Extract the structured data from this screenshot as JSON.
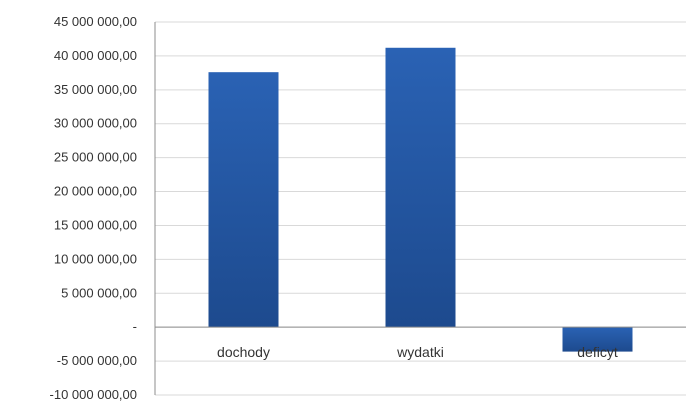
{
  "chart_data": {
    "type": "bar",
    "categories": [
      "dochody",
      "wydatki",
      "deficyt"
    ],
    "values": [
      37600000,
      41200000,
      -3600000
    ],
    "ylim": [
      -10000000,
      45000000
    ],
    "y_ticks": [
      {
        "value": 45000000,
        "label": "45 000 000,00"
      },
      {
        "value": 40000000,
        "label": "40 000 000,00"
      },
      {
        "value": 35000000,
        "label": "35 000 000,00"
      },
      {
        "value": 30000000,
        "label": "30 000 000,00"
      },
      {
        "value": 25000000,
        "label": "25 000 000,00"
      },
      {
        "value": 20000000,
        "label": "20 000 000,00"
      },
      {
        "value": 15000000,
        "label": "15 000 000,00"
      },
      {
        "value": 10000000,
        "label": "10 000 000,00"
      },
      {
        "value": 5000000,
        "label": "5 000 000,00"
      },
      {
        "value": 0,
        "label": "-"
      },
      {
        "value": -5000000,
        "label": "-5 000 000,00"
      },
      {
        "value": -10000000,
        "label": "-10 000 000,00"
      }
    ],
    "grid": true,
    "legend": "none",
    "bar_color": "#2a62b4",
    "bar_color_dark": "#1d4a8e"
  }
}
